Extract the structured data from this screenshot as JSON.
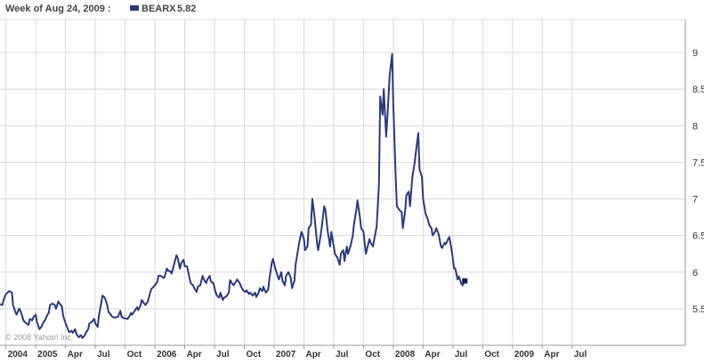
{
  "header": {
    "week_label": "Week of Aug 24, 2009 :",
    "series_name": "BEARX",
    "series_value": "5.82"
  },
  "credit": "© 2008 Yahoo! Inc.",
  "colors": {
    "line": "#2b3a7a",
    "grid": "#d9d9d9",
    "axis": "#999999",
    "end_marker": "#1a2250"
  },
  "chart_data": {
    "type": "line",
    "title": "",
    "xlabel": "",
    "ylabel": "",
    "y_ticks": [
      5.5,
      6,
      6.5,
      7,
      7.5,
      8,
      8.5,
      9
    ],
    "y_tick_labels": [
      "5.50",
      "6",
      "6.50",
      "7",
      "7.50",
      "8",
      "8.50",
      "9"
    ],
    "ylim": [
      5.0,
      9.45
    ],
    "xlim": [
      2003.95,
      2009.7
    ],
    "x_ticks": [
      {
        "label": "2004",
        "x": 2004.0
      },
      {
        "label": "2005",
        "x": 2004.25
      },
      {
        "label": "Apr",
        "x": 2004.5
      },
      {
        "label": "Jul",
        "x": 2004.75
      },
      {
        "label": "Oct",
        "x": 2005.0
      },
      {
        "label": "2006",
        "x": 2005.25
      },
      {
        "label": "Apr",
        "x": 2005.5
      },
      {
        "label": "Jul",
        "x": 2005.75
      },
      {
        "label": "Oct",
        "x": 2006.0
      },
      {
        "label": "2007",
        "x": 2006.25
      },
      {
        "label": "Apr",
        "x": 2006.5
      },
      {
        "label": "Jul",
        "x": 2006.75
      },
      {
        "label": "Oct",
        "x": 2007.0
      },
      {
        "label": "2008",
        "x": 2007.25
      },
      {
        "label": "Apr",
        "x": 2007.5
      },
      {
        "label": "Jul",
        "x": 2007.75
      },
      {
        "label": "Oct",
        "x": 2008.0
      },
      {
        "label": "2009",
        "x": 2008.25
      },
      {
        "label": "Apr",
        "x": 2008.5
      },
      {
        "label": "Jul",
        "x": 2008.75
      }
    ],
    "grid": true,
    "legend": "top-left",
    "series": [
      {
        "name": "BEARX",
        "points": [
          [
            2003.95,
            5.56
          ],
          [
            2003.97,
            5.55
          ],
          [
            2003.98,
            5.62
          ],
          [
            2004.0,
            5.7
          ],
          [
            2004.02,
            5.73
          ],
          [
            2004.03,
            5.74
          ],
          [
            2004.05,
            5.72
          ],
          [
            2004.06,
            5.55
          ],
          [
            2004.08,
            5.45
          ],
          [
            2004.09,
            5.42
          ],
          [
            2004.11,
            5.5
          ],
          [
            2004.12,
            5.48
          ],
          [
            2004.14,
            5.38
          ],
          [
            2004.15,
            5.33
          ],
          [
            2004.17,
            5.3
          ],
          [
            2004.19,
            5.28
          ],
          [
            2004.2,
            5.36
          ],
          [
            2004.22,
            5.34
          ],
          [
            2004.23,
            5.38
          ],
          [
            2004.25,
            5.42
          ],
          [
            2004.26,
            5.32
          ],
          [
            2004.28,
            5.22
          ],
          [
            2004.3,
            5.26
          ],
          [
            2004.31,
            5.3
          ],
          [
            2004.33,
            5.35
          ],
          [
            2004.34,
            5.39
          ],
          [
            2004.36,
            5.45
          ],
          [
            2004.37,
            5.55
          ],
          [
            2004.39,
            5.57
          ],
          [
            2004.41,
            5.55
          ],
          [
            2004.42,
            5.5
          ],
          [
            2004.44,
            5.6
          ],
          [
            2004.45,
            5.57
          ],
          [
            2004.47,
            5.53
          ],
          [
            2004.48,
            5.4
          ],
          [
            2004.5,
            5.3
          ],
          [
            2004.52,
            5.22
          ],
          [
            2004.53,
            5.18
          ],
          [
            2004.55,
            5.2
          ],
          [
            2004.56,
            5.17
          ],
          [
            2004.58,
            5.22
          ],
          [
            2004.59,
            5.16
          ],
          [
            2004.61,
            5.11
          ],
          [
            2004.63,
            5.14
          ],
          [
            2004.64,
            5.1
          ],
          [
            2004.66,
            5.13
          ],
          [
            2004.67,
            5.17
          ],
          [
            2004.69,
            5.22
          ],
          [
            2004.7,
            5.3
          ],
          [
            2004.72,
            5.32
          ],
          [
            2004.74,
            5.36
          ],
          [
            2004.75,
            5.3
          ],
          [
            2004.77,
            5.25
          ],
          [
            2004.78,
            5.4
          ],
          [
            2004.8,
            5.58
          ],
          [
            2004.81,
            5.68
          ],
          [
            2004.83,
            5.65
          ],
          [
            2004.85,
            5.55
          ],
          [
            2004.86,
            5.46
          ],
          [
            2004.88,
            5.42
          ],
          [
            2004.89,
            5.39
          ],
          [
            2004.91,
            5.38
          ],
          [
            2004.92,
            5.38
          ],
          [
            2004.94,
            5.39
          ],
          [
            2004.96,
            5.47
          ],
          [
            2004.97,
            5.39
          ],
          [
            2004.99,
            5.37
          ],
          [
            2005.0,
            5.37
          ],
          [
            2005.02,
            5.36
          ],
          [
            2005.03,
            5.38
          ],
          [
            2005.05,
            5.44
          ],
          [
            2005.06,
            5.42
          ],
          [
            2005.08,
            5.47
          ],
          [
            2005.1,
            5.52
          ],
          [
            2005.11,
            5.48
          ],
          [
            2005.13,
            5.55
          ],
          [
            2005.14,
            5.62
          ],
          [
            2005.16,
            5.57
          ],
          [
            2005.17,
            5.55
          ],
          [
            2005.19,
            5.6
          ],
          [
            2005.21,
            5.72
          ],
          [
            2005.22,
            5.77
          ],
          [
            2005.24,
            5.8
          ],
          [
            2005.25,
            5.82
          ],
          [
            2005.27,
            5.87
          ],
          [
            2005.28,
            5.95
          ],
          [
            2005.3,
            5.95
          ],
          [
            2005.32,
            5.92
          ],
          [
            2005.33,
            5.93
          ],
          [
            2005.35,
            6.05
          ],
          [
            2005.36,
            6.02
          ],
          [
            2005.38,
            6.01
          ],
          [
            2005.39,
            5.98
          ],
          [
            2005.41,
            6.1
          ],
          [
            2005.43,
            6.23
          ],
          [
            2005.44,
            6.2
          ],
          [
            2005.46,
            6.05
          ],
          [
            2005.47,
            6.12
          ],
          [
            2005.49,
            6.17
          ],
          [
            2005.5,
            6.08
          ],
          [
            2005.52,
            6.08
          ],
          [
            2005.54,
            5.92
          ],
          [
            2005.55,
            5.85
          ],
          [
            2005.57,
            5.82
          ],
          [
            2005.58,
            5.78
          ],
          [
            2005.6,
            5.73
          ],
          [
            2005.61,
            5.8
          ],
          [
            2005.63,
            5.82
          ],
          [
            2005.65,
            5.95
          ],
          [
            2005.66,
            5.9
          ],
          [
            2005.68,
            5.85
          ],
          [
            2005.69,
            5.9
          ],
          [
            2005.71,
            5.95
          ],
          [
            2005.72,
            5.87
          ],
          [
            2005.74,
            5.85
          ],
          [
            2005.76,
            5.72
          ],
          [
            2005.77,
            5.68
          ],
          [
            2005.79,
            5.65
          ],
          [
            2005.8,
            5.72
          ],
          [
            2005.82,
            5.62
          ],
          [
            2005.83,
            5.65
          ],
          [
            2005.85,
            5.67
          ],
          [
            2005.87,
            5.72
          ],
          [
            2005.88,
            5.89
          ],
          [
            2005.9,
            5.84
          ],
          [
            2005.91,
            5.82
          ],
          [
            2005.93,
            5.87
          ],
          [
            2005.94,
            5.9
          ],
          [
            2005.96,
            5.85
          ],
          [
            2005.98,
            5.78
          ],
          [
            2005.99,
            5.75
          ],
          [
            2006.01,
            5.73
          ],
          [
            2006.02,
            5.75
          ],
          [
            2006.04,
            5.7
          ],
          [
            2006.05,
            5.72
          ],
          [
            2006.07,
            5.68
          ],
          [
            2006.09,
            5.72
          ],
          [
            2006.1,
            5.66
          ],
          [
            2006.12,
            5.72
          ],
          [
            2006.13,
            5.78
          ],
          [
            2006.15,
            5.74
          ],
          [
            2006.16,
            5.8
          ],
          [
            2006.18,
            5.72
          ],
          [
            2006.2,
            5.76
          ],
          [
            2006.21,
            5.9
          ],
          [
            2006.23,
            6.12
          ],
          [
            2006.24,
            6.18
          ],
          [
            2006.26,
            6.05
          ],
          [
            2006.28,
            5.95
          ],
          [
            2006.29,
            5.9
          ],
          [
            2006.31,
            6.0
          ],
          [
            2006.32,
            5.88
          ],
          [
            2006.34,
            5.82
          ],
          [
            2006.35,
            5.95
          ],
          [
            2006.37,
            6.0
          ],
          [
            2006.39,
            5.92
          ],
          [
            2006.4,
            5.78
          ],
          [
            2006.42,
            5.88
          ],
          [
            2006.43,
            6.1
          ],
          [
            2006.45,
            6.3
          ],
          [
            2006.46,
            6.4
          ],
          [
            2006.48,
            6.55
          ],
          [
            2006.5,
            6.45
          ],
          [
            2006.51,
            6.3
          ],
          [
            2006.53,
            6.35
          ],
          [
            2006.54,
            6.6
          ],
          [
            2006.56,
            6.65
          ],
          [
            2006.57,
            7.0
          ],
          [
            2006.59,
            6.75
          ],
          [
            2006.61,
            6.4
          ],
          [
            2006.62,
            6.3
          ],
          [
            2006.64,
            6.5
          ],
          [
            2006.65,
            6.62
          ],
          [
            2006.67,
            6.9
          ],
          [
            2006.68,
            6.85
          ],
          [
            2006.7,
            6.55
          ],
          [
            2006.72,
            6.35
          ],
          [
            2006.73,
            6.55
          ],
          [
            2006.75,
            6.35
          ],
          [
            2006.76,
            6.25
          ],
          [
            2006.78,
            6.2
          ],
          [
            2006.8,
            6.1
          ],
          [
            2006.81,
            6.25
          ],
          [
            2006.83,
            6.3
          ],
          [
            2006.84,
            6.15
          ],
          [
            2006.86,
            6.35
          ],
          [
            2006.87,
            6.25
          ],
          [
            2006.89,
            6.35
          ],
          [
            2006.91,
            6.5
          ],
          [
            2006.92,
            6.65
          ],
          [
            2006.94,
            6.85
          ],
          [
            2006.95,
            6.98
          ],
          [
            2006.97,
            6.75
          ],
          [
            2006.98,
            6.6
          ],
          [
            2007.0,
            6.55
          ],
          [
            2007.02,
            6.25
          ],
          [
            2007.03,
            6.32
          ],
          [
            2007.05,
            6.45
          ],
          [
            2007.06,
            6.4
          ],
          [
            2007.08,
            6.35
          ],
          [
            2007.09,
            6.45
          ],
          [
            2007.11,
            6.62
          ],
          [
            2007.13,
            7.2
          ],
          [
            2007.14,
            8.4
          ],
          [
            2007.16,
            8.15
          ],
          [
            2007.17,
            8.5
          ],
          [
            2007.19,
            7.85
          ],
          [
            2007.2,
            8.1
          ],
          [
            2007.22,
            8.7
          ],
          [
            2007.24,
            8.98
          ],
          [
            2007.25,
            8.3
          ],
          [
            2007.27,
            7.3
          ],
          [
            2007.28,
            6.9
          ],
          [
            2007.3,
            6.85
          ],
          [
            2007.32,
            6.82
          ],
          [
            2007.33,
            6.6
          ],
          [
            2007.35,
            6.85
          ],
          [
            2007.36,
            7.05
          ],
          [
            2007.38,
            7.1
          ],
          [
            2007.39,
            6.9
          ],
          [
            2007.41,
            7.3
          ],
          [
            2007.43,
            7.5
          ],
          [
            2007.44,
            7.65
          ],
          [
            2007.46,
            7.9
          ],
          [
            2007.47,
            7.4
          ],
          [
            2007.49,
            7.3
          ],
          [
            2007.5,
            7.0
          ],
          [
            2007.52,
            6.8
          ],
          [
            2007.54,
            6.72
          ],
          [
            2007.55,
            6.65
          ],
          [
            2007.57,
            6.6
          ],
          [
            2007.58,
            6.5
          ],
          [
            2007.6,
            6.55
          ],
          [
            2007.61,
            6.6
          ],
          [
            2007.63,
            6.52
          ],
          [
            2007.65,
            6.35
          ],
          [
            2007.66,
            6.33
          ],
          [
            2007.68,
            6.4
          ],
          [
            2007.69,
            6.38
          ],
          [
            2007.71,
            6.45
          ],
          [
            2007.72,
            6.48
          ],
          [
            2007.74,
            6.3
          ],
          [
            2007.76,
            6.05
          ],
          [
            2007.77,
            6.05
          ],
          [
            2007.79,
            5.9
          ],
          [
            2007.8,
            5.94
          ],
          [
            2007.82,
            5.85
          ],
          [
            2007.83,
            5.82
          ],
          [
            2007.85,
            5.88
          ]
        ]
      }
    ]
  }
}
